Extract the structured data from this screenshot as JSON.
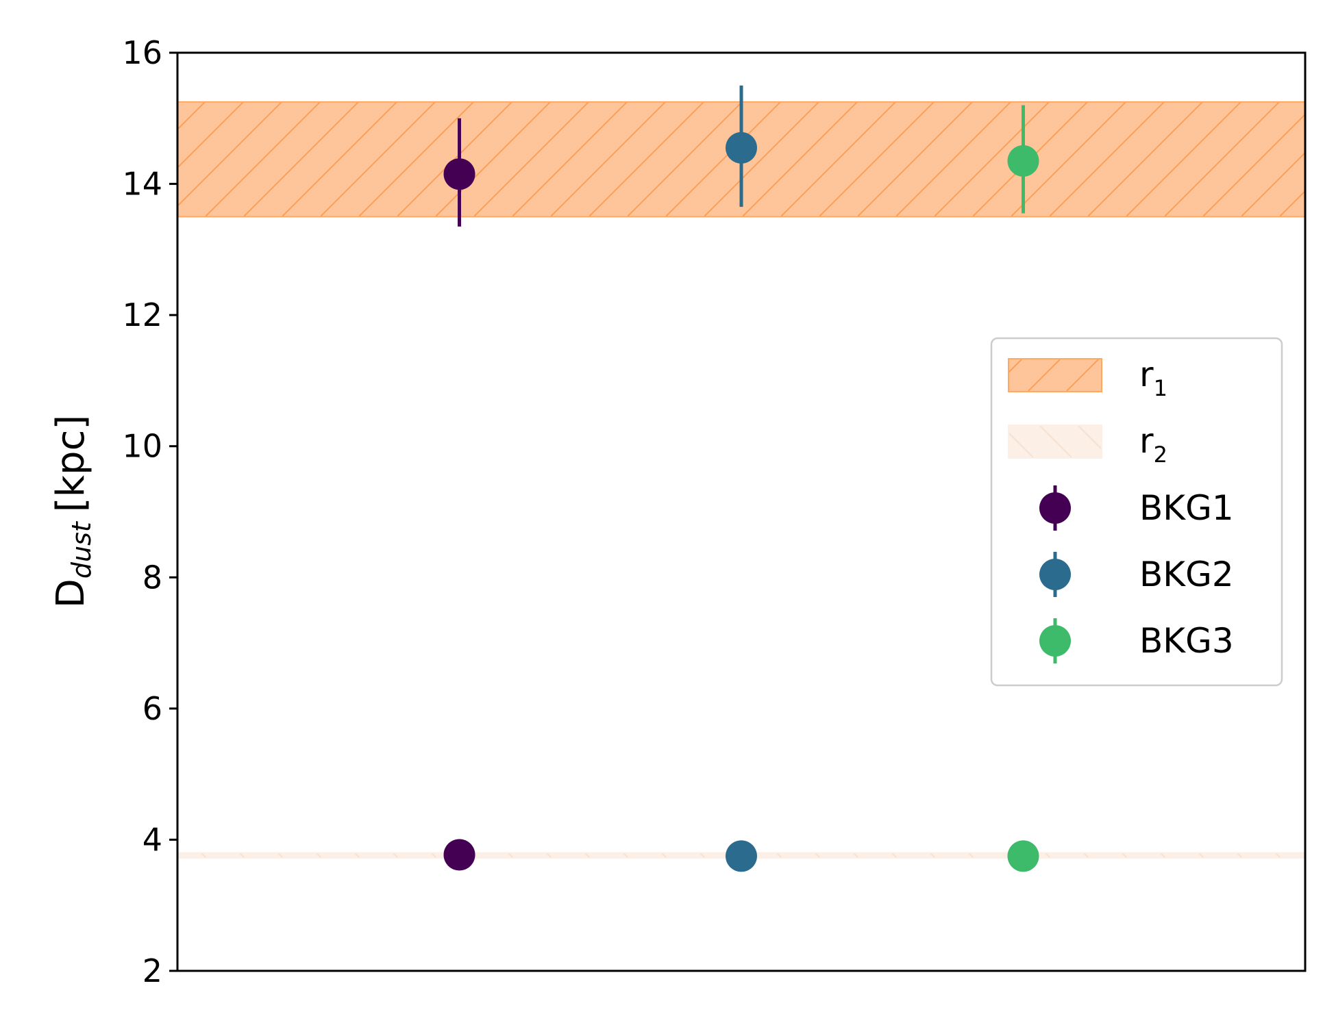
{
  "chart_data": {
    "type": "scatter",
    "ylabel": {
      "base": "D",
      "sub": "dust",
      "unit": "[kpc]"
    },
    "xlabel": "",
    "title": "",
    "ylim": [
      2,
      16
    ],
    "xlim": [
      0,
      4
    ],
    "yticks": [
      2,
      4,
      6,
      8,
      10,
      12,
      14,
      16
    ],
    "xticks_shown": false,
    "grid": false,
    "legend_position": "center-right",
    "bands": [
      {
        "name": "r",
        "sub": "1",
        "y_low": 13.5,
        "y_high": 15.25,
        "color": "#ffc59a",
        "edge_color": "#ffa85e",
        "hatch": "/",
        "alpha": 1.0
      },
      {
        "name": "r",
        "sub": "2",
        "y_low": 3.72,
        "y_high": 3.8,
        "color": "#fbe3d0",
        "edge_color": "#fbe3d0",
        "hatch": "\\",
        "alpha": 0.55
      }
    ],
    "series": [
      {
        "name": "BKG1",
        "color": "#440154",
        "points": [
          {
            "x": 1,
            "y": 14.15,
            "y_low": 13.35,
            "y_high": 15.0
          },
          {
            "x": 1,
            "y": 3.77
          }
        ]
      },
      {
        "name": "BKG2",
        "color": "#2a6b8e",
        "points": [
          {
            "x": 2,
            "y": 14.55,
            "y_low": 13.65,
            "y_high": 15.5
          },
          {
            "x": 2,
            "y": 3.75
          }
        ]
      },
      {
        "name": "BKG3",
        "color": "#3dbb6a",
        "points": [
          {
            "x": 3,
            "y": 14.35,
            "y_low": 13.55,
            "y_high": 15.2
          },
          {
            "x": 3,
            "y": 3.75
          }
        ]
      }
    ]
  }
}
